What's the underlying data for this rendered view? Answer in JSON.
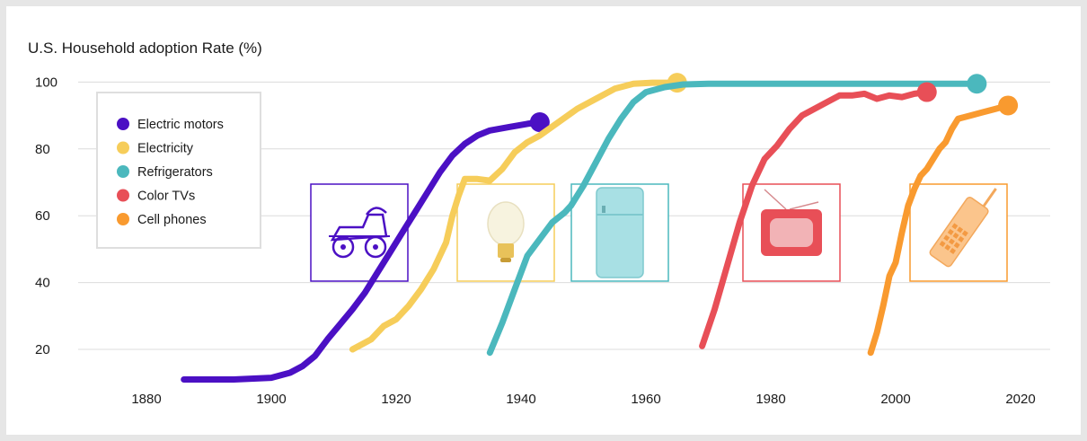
{
  "chart_data": {
    "type": "line",
    "title": "U.S. Household adoption Rate (%)",
    "xlabel": "",
    "ylabel": "",
    "xlim": [
      1871,
      2026
    ],
    "ylim": [
      10,
      104
    ],
    "x_ticks": [
      "1880",
      "1900",
      "1920",
      "1940",
      "1960",
      "1980",
      "2000",
      "2020"
    ],
    "y_ticks": [
      "20",
      "40",
      "60",
      "80",
      "100"
    ],
    "grid": true,
    "legend": "top-left",
    "series": [
      {
        "name": "Electric motors",
        "color": "#4b10c4",
        "icon": "antique-car-icon",
        "points": [
          [
            1886,
            11
          ],
          [
            1894,
            11
          ],
          [
            1900,
            11.5
          ],
          [
            1903,
            13
          ],
          [
            1905,
            15
          ],
          [
            1907,
            18
          ],
          [
            1909,
            23
          ],
          [
            1911,
            27.5
          ],
          [
            1913,
            32
          ],
          [
            1915,
            37
          ],
          [
            1917,
            43
          ],
          [
            1919,
            49
          ],
          [
            1921,
            55
          ],
          [
            1923,
            61
          ],
          [
            1925,
            67
          ],
          [
            1927,
            73
          ],
          [
            1929,
            78
          ],
          [
            1931,
            81.5
          ],
          [
            1933,
            84
          ],
          [
            1935,
            85.5
          ],
          [
            1938,
            86.5
          ],
          [
            1941,
            87.5
          ],
          [
            1943,
            88
          ]
        ]
      },
      {
        "name": "Electricity",
        "color": "#f6cd5a",
        "icon": "light-bulb-icon",
        "points": [
          [
            1913,
            20
          ],
          [
            1916,
            23
          ],
          [
            1918,
            27
          ],
          [
            1920,
            29
          ],
          [
            1922,
            33
          ],
          [
            1924,
            38
          ],
          [
            1926,
            44
          ],
          [
            1928,
            52
          ],
          [
            1929,
            60
          ],
          [
            1930,
            66
          ],
          [
            1931,
            71
          ],
          [
            1933,
            71
          ],
          [
            1935,
            70.5
          ],
          [
            1937,
            74
          ],
          [
            1939,
            79
          ],
          [
            1941,
            82
          ],
          [
            1943,
            84
          ],
          [
            1946,
            88
          ],
          [
            1949,
            92
          ],
          [
            1952,
            95
          ],
          [
            1955,
            98
          ],
          [
            1958,
            99.5
          ],
          [
            1961,
            99.8
          ],
          [
            1965,
            99.8
          ]
        ]
      },
      {
        "name": "Refrigerators",
        "color": "#4bb8bd",
        "icon": "refrigerator-icon",
        "points": [
          [
            1935,
            19
          ],
          [
            1937,
            28
          ],
          [
            1939,
            38
          ],
          [
            1941,
            48
          ],
          [
            1943,
            53
          ],
          [
            1945,
            58
          ],
          [
            1947,
            61
          ],
          [
            1948,
            63
          ],
          [
            1950,
            69
          ],
          [
            1952,
            76
          ],
          [
            1954,
            83
          ],
          [
            1956,
            89
          ],
          [
            1958,
            94
          ],
          [
            1960,
            97
          ],
          [
            1963,
            98.5
          ],
          [
            1966,
            99.3
          ],
          [
            1970,
            99.5
          ],
          [
            1985,
            99.5
          ],
          [
            2000,
            99.5
          ],
          [
            2013,
            99.5
          ]
        ]
      },
      {
        "name": "Color TVs",
        "color": "#e84f57",
        "icon": "television-icon",
        "points": [
          [
            1969,
            21
          ],
          [
            1971,
            32
          ],
          [
            1973,
            45
          ],
          [
            1975,
            58
          ],
          [
            1977,
            69
          ],
          [
            1979,
            77
          ],
          [
            1981,
            81
          ],
          [
            1983,
            86
          ],
          [
            1985,
            90
          ],
          [
            1987,
            92
          ],
          [
            1989,
            94
          ],
          [
            1991,
            96
          ],
          [
            1993,
            96
          ],
          [
            1995,
            96.5
          ],
          [
            1997,
            95
          ],
          [
            1999,
            96
          ],
          [
            2001,
            95.5
          ],
          [
            2003,
            96.5
          ],
          [
            2005,
            97
          ]
        ]
      },
      {
        "name": "Cell phones",
        "color": "#f99a2f",
        "icon": "cell-phone-icon",
        "points": [
          [
            1996,
            19
          ],
          [
            1997,
            25
          ],
          [
            1998,
            33
          ],
          [
            1999,
            42
          ],
          [
            2000,
            46
          ],
          [
            2001,
            55
          ],
          [
            2002,
            63
          ],
          [
            2003,
            68
          ],
          [
            2004,
            72
          ],
          [
            2005,
            74
          ],
          [
            2006,
            77
          ],
          [
            2007,
            80
          ],
          [
            2008,
            82
          ],
          [
            2009,
            86
          ],
          [
            2010,
            89
          ],
          [
            2012,
            90
          ],
          [
            2014,
            91
          ],
          [
            2016,
            92
          ],
          [
            2018,
            93
          ]
        ]
      }
    ]
  }
}
